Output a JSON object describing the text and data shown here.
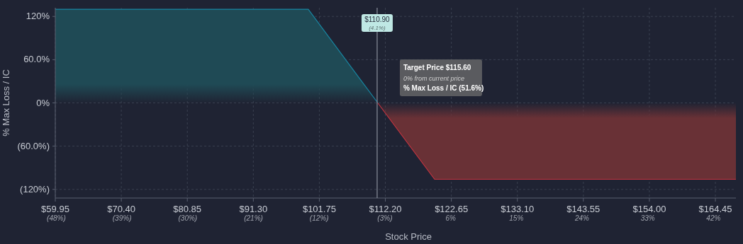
{
  "chart_data": {
    "type": "area",
    "xlabel": "Stock Price",
    "ylabel": "% Max Loss / IC",
    "series": [
      {
        "x": [
          59.95,
          100,
          111
        ],
        "values": [
          130,
          130,
          0
        ],
        "color": "#1f4a55"
      },
      {
        "x": [
          111,
          120,
          167.7
        ],
        "values": [
          0,
          -106,
          -106
        ],
        "color": "#693136"
      }
    ],
    "xlim": [
      59.95,
      167.7
    ],
    "ylim": [
      -132,
      132
    ],
    "xticks": [
      {
        "value": 59.95,
        "label": "$59.95"
      },
      {
        "value": 70.4,
        "label": "$70.40"
      },
      {
        "value": 80.85,
        "label": "$80.85"
      },
      {
        "value": 91.3,
        "label": "$91.30"
      },
      {
        "value": 101.75,
        "label": "$101.75"
      },
      {
        "value": 112.2,
        "label": "$112.20"
      },
      {
        "value": 122.65,
        "label": "$122.65"
      },
      {
        "value": 133.1,
        "label": "$133.10"
      },
      {
        "value": 143.55,
        "label": "$143.55"
      },
      {
        "value": 154,
        "label": "$154.00"
      },
      {
        "value": 164.45,
        "label": "$164.45"
      }
    ],
    "x2lim": [
      -48.14,
      45.07
    ],
    "x2ticks": [
      {
        "value": -48,
        "label": "(48%)"
      },
      {
        "value": -39,
        "label": "(39%)"
      },
      {
        "value": -30,
        "label": "(30%)"
      },
      {
        "value": -21,
        "label": "(21%)"
      },
      {
        "value": -12,
        "label": "(12%)"
      },
      {
        "value": -3,
        "label": "(3%)"
      },
      {
        "value": 6,
        "label": "6%"
      },
      {
        "value": 15,
        "label": "15%"
      },
      {
        "value": 24,
        "label": "24%"
      },
      {
        "value": 33,
        "label": "33%"
      },
      {
        "value": 42,
        "label": "42%"
      }
    ],
    "yticks": [
      {
        "value": 120,
        "label": "120%"
      },
      {
        "value": 60,
        "label": "60.0%"
      },
      {
        "value": 0,
        "label": "0%"
      },
      {
        "value": -60,
        "label": "(60.0%)"
      },
      {
        "value": -120,
        "label": "(120%)"
      }
    ],
    "ref_lines": [
      {
        "axis": "x",
        "value": 110.9,
        "label": "$110.90\n(4.1%)",
        "color": "#8a8f9c"
      }
    ],
    "annotations": [
      "Target Price $115.60",
      "0% from current price",
      "% Max Loss / IC (51.6%)"
    ],
    "grid": true,
    "marker": "none",
    "line_style": "solid"
  }
}
